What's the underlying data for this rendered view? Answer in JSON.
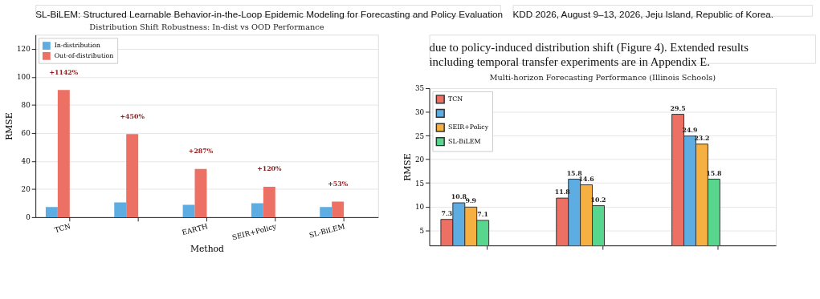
{
  "chart_data": [
    {
      "type": "bar",
      "title": "Distribution Shift Robustness: In-dist vs OOD Performance",
      "xlabel": "Method",
      "ylabel": "RMSE",
      "categories": [
        "TCN",
        null,
        "EARTH",
        "SEIR+Policy",
        "SL-BiLEM"
      ],
      "series": [
        {
          "name": "In-distribution",
          "color": "#5dade2",
          "values": [
            7.2,
            10.5,
            8.8,
            10.0,
            7.2
          ]
        },
        {
          "name": "Out-of-distribution",
          "color": "#ec7063",
          "values": [
            90.7,
            59.2,
            34.3,
            21.6,
            11.1
          ]
        }
      ],
      "ylim": [
        0,
        130
      ],
      "yticks": [
        0,
        20,
        40,
        60,
        80,
        100,
        120
      ],
      "grid": "y",
      "legend": "top left",
      "annotations": [
        "SL-BiLEM: Structured Learnable Behavior-in-the-Loop Epidemic Modeling for Forecasting and Policy Evaluation",
        "+1142%",
        "+450%",
        "+287%",
        "+120%",
        "+53%"
      ]
    },
    {
      "type": "bar",
      "title": "Multi-horizon Forecasting Performance (Illinois Schools)",
      "ylabel": "RMSE",
      "categories": [
        null,
        null,
        null
      ],
      "series": [
        {
          "name": "TCN",
          "color": "#ec7063",
          "values": [
            7.3,
            11.8,
            29.5
          ]
        },
        {
          "color": "#5dade2",
          "values": [
            10.8,
            15.8,
            24.9
          ]
        },
        {
          "name": "SEIR+Policy",
          "color": "#f5b041",
          "values": [
            9.9,
            14.6,
            23.2
          ]
        },
        {
          "name": "SL-BiLEM",
          "color": "#58d68d",
          "values": [
            7.1,
            10.2,
            15.8
          ]
        }
      ],
      "ylim": [
        1.8,
        35
      ],
      "yticks": [
        5,
        10,
        15,
        20,
        25,
        30,
        35
      ],
      "grid": "y",
      "legend": "top left",
      "data_labels": true,
      "annotations": [
        "KDD 2026, August 9–13, 2026, Jeju Island, Republic of Korea.",
        "due to policy-induced distribution shift (Figure 4). Extended results",
        "including temporal transfer experiments are in Appendix E."
      ]
    }
  ]
}
